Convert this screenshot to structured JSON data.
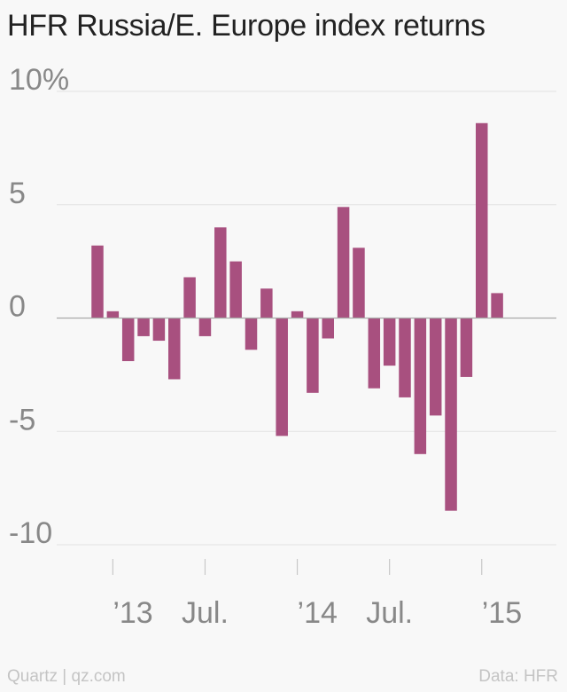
{
  "header": {
    "title": "HFR Russia/E. Europe index returns"
  },
  "footer": {
    "source_left": "Quartz | qz.com",
    "source_right": "Data: HFR"
  },
  "colors": {
    "bar": "#a8507f",
    "grid": "#e2e2e2",
    "zero": "#aaaaaa",
    "tick_text": "#888888",
    "tick_mark": "#c8c8c8"
  },
  "chart_data": {
    "type": "bar",
    "title": "HFR Russia/E. Europe index returns",
    "xlabel": "",
    "ylabel": "",
    "ylim": [
      -10,
      10
    ],
    "y_ticks": [
      {
        "value": 10,
        "label": "10%"
      },
      {
        "value": 5,
        "label": "5"
      },
      {
        "value": 0,
        "label": "0"
      },
      {
        "value": -5,
        "label": "-5"
      },
      {
        "value": -10,
        "label": "-10"
      }
    ],
    "x_ticks": [
      {
        "month": "2013-01",
        "label": "’13"
      },
      {
        "month": "2013-07",
        "label": "Jul."
      },
      {
        "month": "2014-01",
        "label": "’14"
      },
      {
        "month": "2014-07",
        "label": "Jul."
      },
      {
        "month": "2015-01",
        "label": "’15"
      }
    ],
    "categories": [
      "2012-12",
      "2013-01",
      "2013-02",
      "2013-03",
      "2013-04",
      "2013-05",
      "2013-06",
      "2013-07",
      "2013-08",
      "2013-09",
      "2013-10",
      "2013-11",
      "2013-12",
      "2014-01",
      "2014-02",
      "2014-03",
      "2014-04",
      "2014-05",
      "2014-06",
      "2014-07",
      "2014-08",
      "2014-09",
      "2014-10",
      "2014-11",
      "2014-12",
      "2015-01",
      "2015-02"
    ],
    "values": [
      3.2,
      0.3,
      -1.9,
      -0.8,
      -1.0,
      -2.7,
      1.8,
      -0.8,
      4.0,
      2.5,
      -1.4,
      1.3,
      -5.2,
      0.3,
      -3.3,
      -0.9,
      4.9,
      3.1,
      -3.1,
      -2.1,
      -3.5,
      -6.0,
      -4.3,
      -8.5,
      -2.6,
      8.6,
      1.1
    ],
    "grid": true,
    "legend": "none"
  }
}
